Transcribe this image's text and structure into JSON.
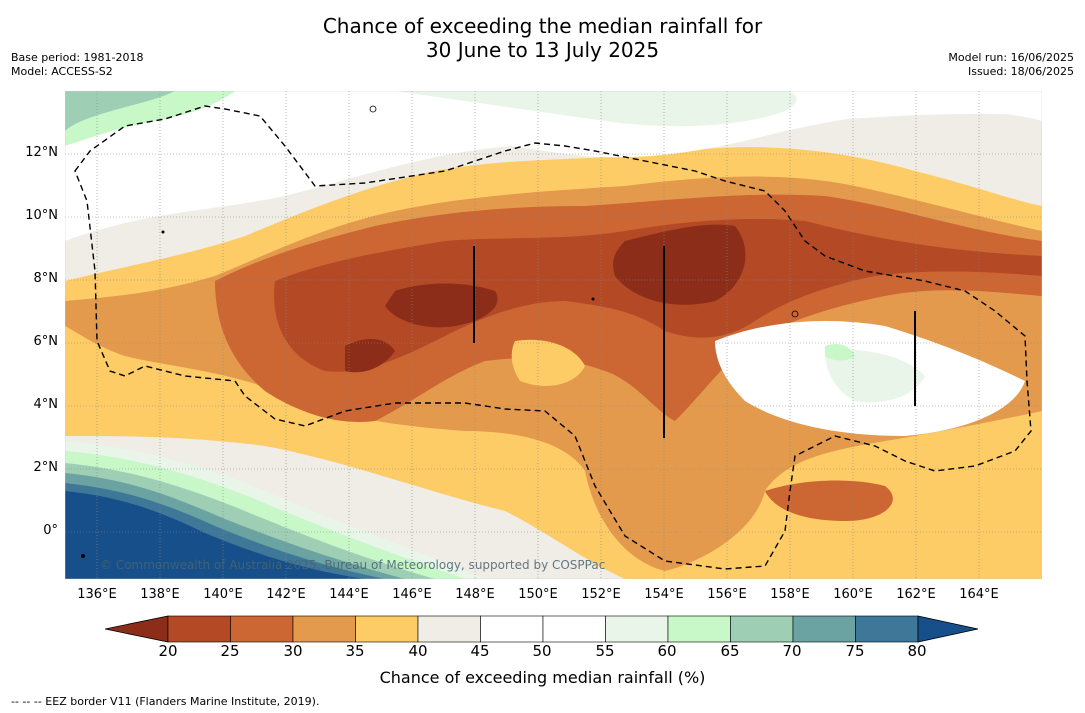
{
  "title": {
    "line1": "Chance of exceeding the median rainfall for",
    "line2": "30 June to 13 July 2025"
  },
  "meta_left": {
    "base_period": "Base period: 1981-2018",
    "model": "Model: ACCESS-S2"
  },
  "meta_right": {
    "model_run": "Model run: 16/06/2025",
    "issued": "Issued: 18/06/2025"
  },
  "map": {
    "lon_labels": [
      "136°E",
      "138°E",
      "140°E",
      "142°E",
      "144°E",
      "146°E",
      "148°E",
      "150°E",
      "152°E",
      "154°E",
      "156°E",
      "158°E",
      "160°E",
      "162°E",
      "164°E"
    ],
    "lat_labels": [
      "12°N",
      "10°N",
      "8°N",
      "6°N",
      "4°N",
      "2°N",
      "0°"
    ],
    "copyright": "© Commonwealth of Australia 2025, Bureau of Meteorology, supported by COSPPac"
  },
  "colorbar": {
    "label": "Chance of exceeding median rainfall (%)",
    "ticks": [
      "20",
      "25",
      "30",
      "35",
      "40",
      "45",
      "50",
      "55",
      "60",
      "65",
      "70",
      "75",
      "80"
    ],
    "colors": [
      "#8c2d1a",
      "#b34a25",
      "#cc6633",
      "#e39a4d",
      "#fdcc66",
      "#f0ece6",
      "#ffffff",
      "#ffffff",
      "#e8f5e8",
      "#c8f7c8",
      "#9ecfb5",
      "#6ba3a3",
      "#3f7799",
      "#164f8a"
    ]
  },
  "legend": {
    "footnote": "--  --  -- EEZ border V11 (Flanders Marine Institute, 2019)."
  }
}
